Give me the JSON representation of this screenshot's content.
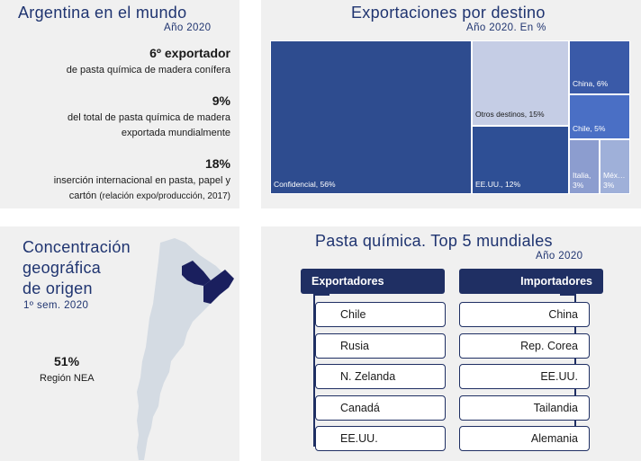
{
  "mundo": {
    "title": "Argentina en el mundo",
    "subtitle": "Año 2020",
    "stats": [
      {
        "big": "6º exportador",
        "desc": [
          "de pasta química de madera conífera"
        ]
      },
      {
        "big": "9%",
        "desc": [
          "del total de pasta química de madera",
          "exportada mundialmente"
        ]
      },
      {
        "big": "18%",
        "desc": [
          "inserción internacional en pasta, papel y"
        ],
        "desc_last": "cartón",
        "desc_small": "(relación expo/producción, 2017)"
      }
    ]
  },
  "chart_data": {
    "type": "treemap",
    "title": "Exportaciones por destino",
    "subtitle": "Año 2020. En %",
    "items": [
      {
        "label": "Confidencial, 56%",
        "name": "Confidencial",
        "value": 56,
        "color": "#2e4c8f"
      },
      {
        "label": "Otros destinos, 15%",
        "name": "Otros destinos",
        "value": 15,
        "color": "#c5cde5"
      },
      {
        "label": "EE.UU., 12%",
        "name": "EE.UU.",
        "value": 12,
        "color": "#2e4f95"
      },
      {
        "label": "China, 6%",
        "name": "China",
        "value": 6,
        "color": "#3a5aa8"
      },
      {
        "label": "Chile, 5%",
        "name": "Chile",
        "value": 5,
        "color": "#4a6fc5"
      },
      {
        "label": [
          "Italia,",
          "3%"
        ],
        "name": "Italia",
        "value": 3,
        "color": "#8c9dcf"
      },
      {
        "label": [
          "Méx…",
          "3%"
        ],
        "name": "México",
        "value": 3,
        "color": "#9fb0d9"
      }
    ]
  },
  "concentracion": {
    "title_lines": [
      "Concentración",
      "geográfica",
      "de origen"
    ],
    "subtitle": "1º sem. 2020",
    "value": "51%",
    "value_label": "Región NEA",
    "map_colors": {
      "land": "#d4dbe3",
      "highlight": "#1a1f5e"
    }
  },
  "top5": {
    "title": "Pasta química. Top 5 mundiales",
    "subtitle": "Año 2020",
    "exportadores_label": "Exportadores",
    "importadores_label": "Importadores",
    "exportadores": [
      "Chile",
      "Rusia",
      "N. Zelanda",
      "Canadá",
      "EE.UU."
    ],
    "importadores": [
      "China",
      "Rep. Corea",
      "EE.UU.",
      "Tailandia",
      "Alemania"
    ]
  }
}
